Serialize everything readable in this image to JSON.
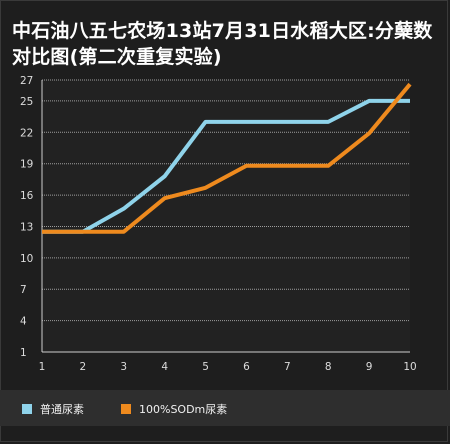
{
  "chart_data": {
    "type": "line",
    "title": "中石油八五七农场13站7月31日水稻大区:分蘖数对比图(第二次重复实验)",
    "x": [
      1,
      2,
      3,
      4,
      5,
      6,
      7,
      8,
      9,
      10
    ],
    "y_ticks": [
      1,
      4,
      7,
      10,
      13,
      16,
      19,
      22,
      25,
      27
    ],
    "ylim": [
      1,
      27
    ],
    "xlim": [
      1,
      10
    ],
    "grid": "horizontal dashed",
    "legend_position": "bottom",
    "series": [
      {
        "name": "普通尿素",
        "color": "#8fd3ea",
        "values": [
          12.5,
          12.5,
          14.7,
          17.8,
          23.0,
          23.0,
          23.0,
          23.0,
          25.0,
          25.0
        ]
      },
      {
        "name": "100%SODm尿素",
        "color": "#ee8a1e",
        "values": [
          12.5,
          12.5,
          12.5,
          15.7,
          16.7,
          18.8,
          18.8,
          18.8,
          21.9,
          26.6
        ]
      }
    ]
  }
}
